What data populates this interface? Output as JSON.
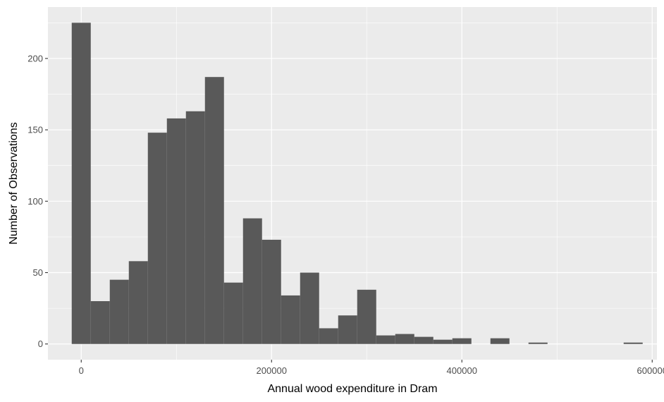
{
  "chart_data": {
    "type": "bar",
    "subtype": "histogram",
    "title": "",
    "xlabel": "Annual wood expenditure in Dram",
    "ylabel": "Number of Observations",
    "xlim": [
      -35000,
      605000
    ],
    "ylim": [
      -11,
      236
    ],
    "x_ticks": [
      0,
      200000,
      400000,
      600000
    ],
    "x_tick_labels": [
      "0",
      "200000",
      "400000",
      "600000"
    ],
    "y_ticks": [
      0,
      50,
      100,
      150,
      200
    ],
    "y_tick_labels": [
      "0",
      "50",
      "100",
      "150",
      "200"
    ],
    "grid": true,
    "bin_width": 20000,
    "bin_centers": [
      0,
      20000,
      40000,
      60000,
      80000,
      100000,
      120000,
      140000,
      160000,
      180000,
      200000,
      220000,
      240000,
      260000,
      280000,
      300000,
      320000,
      340000,
      360000,
      380000,
      400000,
      420000,
      440000,
      460000,
      480000,
      500000,
      520000,
      540000,
      560000,
      580000
    ],
    "values": [
      225,
      30,
      45,
      58,
      148,
      158,
      163,
      187,
      43,
      88,
      73,
      34,
      50,
      11,
      20,
      38,
      6,
      7,
      5,
      3,
      4,
      0,
      4,
      0,
      1,
      0,
      0,
      0,
      0,
      1
    ],
    "colors": {
      "bar": "#595959",
      "panel": "#ebebeb",
      "grid_major": "#ffffff",
      "tick_text": "#4d4d4d",
      "title_text": "#000000"
    }
  }
}
